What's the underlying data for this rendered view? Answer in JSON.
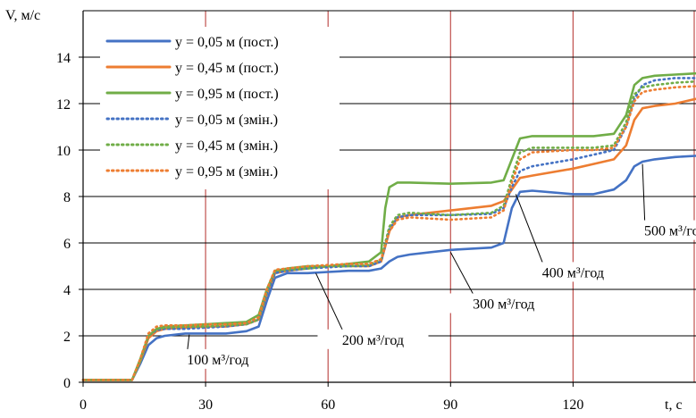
{
  "chart_data": {
    "type": "line",
    "xlabel": "t, c",
    "ylabel": "V, м/с",
    "xlim": [
      0,
      150
    ],
    "ylim": [
      0,
      15
    ],
    "xticks": [
      0,
      30,
      60,
      90,
      120
    ],
    "xtick_labels": [
      "0",
      "30",
      "60",
      "90",
      "120"
    ],
    "yticks": [
      0,
      2,
      4,
      6,
      8,
      10,
      12,
      14
    ],
    "ytick_labels": [
      "0",
      "2",
      "4",
      "6",
      "8",
      "10",
      "12",
      "14"
    ],
    "grid": {
      "horizontal": true,
      "horizontal_color": "#000000",
      "vertical": true,
      "vertical_color": "#c0504d"
    },
    "legend_position": "top-left",
    "series": [
      {
        "name": "y = 0,05 м (пост.)",
        "color": "#4472c4",
        "style": "solid",
        "x": [
          0,
          10,
          12,
          14,
          16,
          18,
          20,
          25,
          30,
          35,
          40,
          43,
          45,
          47,
          50,
          55,
          60,
          65,
          70,
          73,
          75,
          77,
          80,
          90,
          100,
          103,
          105,
          107,
          110,
          120,
          125,
          130,
          133,
          135,
          137,
          140,
          145,
          150
        ],
        "y": [
          0.1,
          0.1,
          0.1,
          0.8,
          1.6,
          1.9,
          2.0,
          2.1,
          2.1,
          2.1,
          2.2,
          2.4,
          3.5,
          4.5,
          4.7,
          4.7,
          4.75,
          4.8,
          4.8,
          4.9,
          5.2,
          5.4,
          5.5,
          5.7,
          5.8,
          6.0,
          7.5,
          8.2,
          8.25,
          8.1,
          8.1,
          8.3,
          8.7,
          9.3,
          9.5,
          9.6,
          9.7,
          9.75
        ]
      },
      {
        "name": "y = 0,45 м (пост.)",
        "color": "#ed7d31",
        "style": "solid",
        "x": [
          0,
          10,
          12,
          14,
          16,
          18,
          20,
          25,
          30,
          35,
          40,
          43,
          45,
          47,
          50,
          55,
          60,
          65,
          70,
          73,
          75,
          77,
          80,
          90,
          100,
          103,
          105,
          107,
          110,
          120,
          125,
          130,
          133,
          135,
          137,
          140,
          145,
          150
        ],
        "y": [
          0.1,
          0.1,
          0.1,
          0.9,
          1.9,
          2.2,
          2.3,
          2.35,
          2.4,
          2.4,
          2.5,
          2.7,
          3.8,
          4.7,
          4.8,
          4.9,
          5.0,
          5.0,
          5.0,
          5.2,
          6.5,
          7.1,
          7.2,
          7.4,
          7.6,
          7.8,
          8.3,
          8.8,
          8.9,
          9.2,
          9.4,
          9.6,
          10.2,
          11.3,
          11.8,
          11.9,
          12.0,
          12.2
        ]
      },
      {
        "name": "y = 0,95 м (пост.)",
        "color": "#70ad47",
        "style": "solid",
        "x": [
          0,
          10,
          12,
          14,
          16,
          18,
          20,
          25,
          30,
          35,
          40,
          43,
          45,
          47,
          50,
          55,
          60,
          65,
          70,
          73,
          74,
          75,
          77,
          80,
          90,
          100,
          103,
          105,
          107,
          110,
          120,
          125,
          130,
          133,
          135,
          137,
          140,
          145,
          150
        ],
        "y": [
          0.1,
          0.1,
          0.1,
          1.0,
          2.0,
          2.3,
          2.4,
          2.45,
          2.5,
          2.55,
          2.6,
          2.9,
          4.0,
          4.8,
          4.9,
          5.0,
          5.0,
          5.1,
          5.2,
          5.6,
          7.5,
          8.4,
          8.6,
          8.6,
          8.55,
          8.6,
          8.7,
          9.6,
          10.5,
          10.6,
          10.6,
          10.6,
          10.7,
          11.5,
          12.8,
          13.1,
          13.2,
          13.25,
          13.3
        ]
      },
      {
        "name": "y = 0,05 м (змін.)",
        "color": "#4472c4",
        "style": "dotted",
        "x": [
          0,
          10,
          12,
          14,
          16,
          18,
          20,
          25,
          30,
          35,
          40,
          43,
          45,
          47,
          50,
          55,
          60,
          65,
          70,
          73,
          75,
          77,
          80,
          90,
          100,
          103,
          105,
          107,
          110,
          120,
          125,
          130,
          133,
          135,
          137,
          140,
          145,
          150
        ],
        "y": [
          0.1,
          0.1,
          0.1,
          0.9,
          2.0,
          2.25,
          2.3,
          2.3,
          2.35,
          2.4,
          2.5,
          2.7,
          3.8,
          4.7,
          4.8,
          4.9,
          4.95,
          5.0,
          5.0,
          5.2,
          6.6,
          7.1,
          7.2,
          7.2,
          7.25,
          7.5,
          8.4,
          9.1,
          9.3,
          9.6,
          9.8,
          10.0,
          11.0,
          12.2,
          12.8,
          13.0,
          13.1,
          13.1
        ]
      },
      {
        "name": "y = 0,45 м (змін.)",
        "color": "#70ad47",
        "style": "dotted",
        "x": [
          0,
          10,
          12,
          14,
          16,
          18,
          20,
          25,
          30,
          35,
          40,
          43,
          45,
          47,
          50,
          55,
          60,
          65,
          70,
          73,
          75,
          77,
          80,
          90,
          100,
          103,
          105,
          107,
          110,
          120,
          125,
          130,
          133,
          135,
          137,
          140,
          145,
          150
        ],
        "y": [
          0.1,
          0.1,
          0.1,
          0.9,
          2.0,
          2.3,
          2.35,
          2.4,
          2.4,
          2.45,
          2.5,
          2.7,
          3.9,
          4.8,
          4.85,
          4.9,
          5.0,
          5.0,
          5.05,
          5.3,
          6.7,
          7.2,
          7.3,
          7.2,
          7.3,
          7.6,
          8.8,
          9.9,
          10.1,
          10.1,
          10.1,
          10.2,
          11.2,
          12.4,
          12.7,
          12.8,
          12.9,
          12.95
        ]
      },
      {
        "name": "y = 0,95 м (змін.)",
        "color": "#ed7d31",
        "style": "dotted",
        "x": [
          0,
          10,
          12,
          14,
          16,
          18,
          20,
          25,
          30,
          35,
          40,
          43,
          45,
          47,
          50,
          55,
          60,
          65,
          70,
          73,
          75,
          77,
          80,
          90,
          100,
          103,
          105,
          107,
          110,
          120,
          125,
          130,
          133,
          135,
          137,
          140,
          145,
          150
        ],
        "y": [
          0.1,
          0.1,
          0.1,
          1.0,
          2.1,
          2.4,
          2.45,
          2.45,
          2.5,
          2.5,
          2.55,
          2.8,
          4.0,
          4.85,
          4.9,
          5.0,
          5.05,
          5.1,
          5.1,
          5.3,
          6.5,
          7.0,
          7.1,
          7.0,
          7.1,
          7.4,
          8.6,
          9.6,
          9.9,
          10.0,
          10.0,
          10.1,
          11.0,
          12.1,
          12.5,
          12.6,
          12.7,
          12.75
        ]
      }
    ],
    "annotations": [
      {
        "text": "100 м³/год",
        "x": 33,
        "y": 0.85,
        "pointer": [
          26,
          2.05
        ]
      },
      {
        "text": "200 м³/год",
        "x": 71,
        "y": 1.7,
        "pointer": [
          57,
          4.7
        ]
      },
      {
        "text": "300 м³/год",
        "x": 103,
        "y": 3.25,
        "pointer": [
          90,
          5.6
        ]
      },
      {
        "text": "400 м³/год",
        "x": 120,
        "y": 4.6,
        "pointer": [
          106,
          8.1
        ]
      },
      {
        "text": "500 м³/год",
        "x": 145,
        "y": 6.4,
        "pointer": [
          137,
          9.4
        ]
      }
    ]
  }
}
